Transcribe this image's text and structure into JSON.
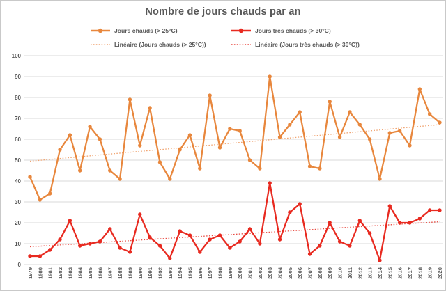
{
  "title": "Nombre de jours chauds par an",
  "colors": {
    "orange": "#E8873D",
    "red": "#E82A20",
    "orange_trend": "#F0A471",
    "red_trend": "#E94C43",
    "gridline": "#DADADA",
    "text": "#595959"
  },
  "legend": [
    {
      "label": "Jours chauds (> 25°C)",
      "style": "line-marker",
      "color": "#E8873D"
    },
    {
      "label": "Jours très chauds (> 30°C)",
      "style": "line-marker",
      "color": "#E82A20"
    },
    {
      "label": "Linéaire (Jours chauds (> 25°C))",
      "style": "dotted",
      "color": "#F0A471"
    },
    {
      "label": "Linéaire (Jours très chauds (> 30°C))",
      "style": "dotted",
      "color": "#E94C43"
    }
  ],
  "chart_data": {
    "type": "line",
    "title": "Nombre de jours chauds par an",
    "xlabel": "",
    "ylabel": "",
    "ylim": [
      0,
      100
    ],
    "yticks": [
      0,
      10,
      20,
      30,
      40,
      50,
      60,
      70,
      80,
      90,
      100
    ],
    "grid": true,
    "legend_position": "top",
    "x": [
      1979,
      1980,
      1981,
      1982,
      1983,
      1984,
      1985,
      1986,
      1987,
      1988,
      1989,
      1990,
      1991,
      1992,
      1993,
      1994,
      1995,
      1996,
      1997,
      1998,
      1999,
      2000,
      2001,
      2002,
      2003,
      2004,
      2005,
      2006,
      2007,
      2008,
      2009,
      2010,
      2011,
      2012,
      2013,
      2014,
      2015,
      2016,
      2017,
      2018,
      2019,
      2020
    ],
    "series": [
      {
        "name": "Jours chauds (> 25°C)",
        "color": "#E8873D",
        "values": [
          42,
          31,
          34,
          55,
          62,
          45,
          66,
          60,
          45,
          41,
          79,
          57,
          75,
          49,
          41,
          55,
          62,
          46,
          81,
          56,
          65,
          64,
          50,
          46,
          90,
          61,
          67,
          73,
          47,
          46,
          78,
          61,
          73,
          67,
          60,
          41,
          63,
          64,
          57,
          84,
          72,
          68
        ]
      },
      {
        "name": "Jours très chauds (> 30°C)",
        "color": "#E82A20",
        "values": [
          4,
          4,
          7,
          12,
          21,
          9,
          10,
          11,
          17,
          8,
          6,
          24,
          13,
          9,
          3,
          16,
          14,
          6,
          12,
          14,
          8,
          11,
          17,
          10,
          39,
          12,
          25,
          29,
          5,
          9,
          20,
          11,
          9,
          21,
          15,
          2,
          28,
          20,
          20,
          22,
          26,
          26
        ]
      }
    ],
    "trendlines": [
      {
        "name": "Linéaire (Jours chauds (> 25°C))",
        "color": "#F0A471",
        "start": 49.5,
        "end": 67
      },
      {
        "name": "Linéaire (Jours très chauds (> 30°C))",
        "color": "#E94C43",
        "start": 8.5,
        "end": 20.5
      }
    ]
  }
}
